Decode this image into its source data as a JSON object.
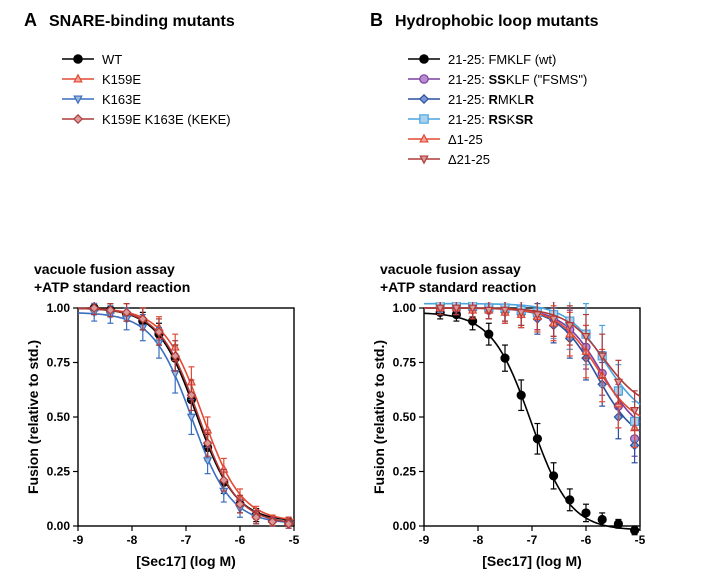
{
  "panelA": {
    "letter": "A",
    "title": "SNARE-binding mutants",
    "legend": [
      {
        "label": "WT",
        "color": "#000000",
        "marker": "circle",
        "fill": "#000000"
      },
      {
        "label": "K159E",
        "color": "#e24a33",
        "marker": "triangle-up",
        "fill": "#f4a6a0"
      },
      {
        "label": "K163E",
        "color": "#3a6fbf",
        "marker": "triangle-down",
        "fill": "#9fb8e0"
      },
      {
        "label": "K159E K163E (KEKE)",
        "color": "#b03a3a",
        "marker": "diamond",
        "fill": "#d99a9a"
      }
    ],
    "chartTitle1": "vacuole fusion assay",
    "chartTitle2": "+ATP standard reaction",
    "yLabel": "Fusion (relative to std.)",
    "xLabel": "[Sec17] (log M)",
    "xlim": [
      -9,
      -5
    ],
    "ylim": [
      0,
      1.0
    ],
    "xtickStep": 1,
    "ytickStep": 0.25,
    "gridColor": "#000000",
    "background": "#ffffff",
    "series": [
      {
        "name": "WT",
        "color": "#000000",
        "fill": "#000000",
        "marker": "circle",
        "x": [
          -8.7,
          -8.4,
          -8.1,
          -7.8,
          -7.5,
          -7.2,
          -6.9,
          -6.6,
          -6.3,
          -6.0,
          -5.7,
          -5.4,
          -5.1
        ],
        "y": [
          1.0,
          0.99,
          0.97,
          0.94,
          0.88,
          0.77,
          0.58,
          0.36,
          0.2,
          0.1,
          0.05,
          0.03,
          0.02
        ],
        "err": [
          0.03,
          0.03,
          0.03,
          0.04,
          0.05,
          0.06,
          0.07,
          0.06,
          0.05,
          0.04,
          0.03,
          0.02,
          0.02
        ]
      },
      {
        "name": "K159E",
        "color": "#e24a33",
        "fill": "#f4a6a0",
        "marker": "triangle-up",
        "x": [
          -8.7,
          -8.4,
          -8.1,
          -7.8,
          -7.5,
          -7.2,
          -6.9,
          -6.6,
          -6.3,
          -6.0,
          -5.7,
          -5.4,
          -5.1
        ],
        "y": [
          1.0,
          0.99,
          0.98,
          0.96,
          0.91,
          0.82,
          0.66,
          0.44,
          0.26,
          0.13,
          0.06,
          0.03,
          0.02
        ],
        "err": [
          0.03,
          0.03,
          0.04,
          0.04,
          0.05,
          0.06,
          0.07,
          0.06,
          0.05,
          0.04,
          0.03,
          0.02,
          0.02
        ]
      },
      {
        "name": "K163E",
        "color": "#3a6fbf",
        "fill": "#9fb8e0",
        "marker": "triangle-down",
        "x": [
          -8.7,
          -8.4,
          -8.1,
          -7.8,
          -7.5,
          -7.2,
          -6.9,
          -6.6,
          -6.3,
          -6.0,
          -5.7,
          -5.4,
          -5.1
        ],
        "y": [
          0.98,
          0.97,
          0.95,
          0.91,
          0.84,
          0.7,
          0.5,
          0.3,
          0.16,
          0.08,
          0.04,
          0.02,
          0.01
        ],
        "err": [
          0.04,
          0.04,
          0.05,
          0.06,
          0.07,
          0.09,
          0.08,
          0.06,
          0.05,
          0.04,
          0.03,
          0.02,
          0.02
        ]
      },
      {
        "name": "KEKE",
        "color": "#b03a3a",
        "fill": "#d99a9a",
        "marker": "diamond",
        "x": [
          -8.7,
          -8.4,
          -8.1,
          -7.8,
          -7.5,
          -7.2,
          -6.9,
          -6.6,
          -6.3,
          -6.0,
          -5.7,
          -5.4,
          -5.1
        ],
        "y": [
          1.0,
          0.99,
          0.98,
          0.95,
          0.89,
          0.78,
          0.6,
          0.38,
          0.21,
          0.1,
          0.04,
          0.02,
          0.01
        ],
        "err": [
          0.03,
          0.03,
          0.04,
          0.05,
          0.06,
          0.07,
          0.07,
          0.06,
          0.05,
          0.04,
          0.03,
          0.02,
          0.02
        ]
      }
    ]
  },
  "panelB": {
    "letter": "B",
    "title": "Hydrophobic loop mutants",
    "legend": [
      {
        "labelParts": [
          [
            "21-25: FMKLF (wt)",
            false
          ]
        ],
        "color": "#000000",
        "marker": "circle",
        "fill": "#000000"
      },
      {
        "labelParts": [
          [
            "21-25: ",
            false
          ],
          [
            "SS",
            true
          ],
          [
            "KLF (\"FSMS\")",
            false
          ]
        ],
        "color": "#7a3fa0",
        "marker": "circle",
        "fill": "#b88cd0"
      },
      {
        "labelParts": [
          [
            "21-25: ",
            false
          ],
          [
            "R",
            true
          ],
          [
            "MKL",
            false
          ],
          [
            "R",
            true
          ]
        ],
        "color": "#2c4f9e",
        "marker": "diamond",
        "fill": "#7a98d6"
      },
      {
        "labelParts": [
          [
            "21-25: ",
            false
          ],
          [
            "RS",
            true
          ],
          [
            "K",
            false
          ],
          [
            "SR",
            true
          ]
        ],
        "color": "#4aa3df",
        "marker": "square",
        "fill": "#a7d1ef"
      },
      {
        "labelParts": [
          [
            "Δ1-25",
            false
          ]
        ],
        "color": "#e24a33",
        "marker": "triangle-up",
        "fill": "#f4a6a0"
      },
      {
        "labelParts": [
          [
            "Δ21-25",
            false
          ]
        ],
        "color": "#b03a3a",
        "marker": "triangle-down",
        "fill": "#d99a9a"
      }
    ],
    "chartTitle1": "vacuole fusion assay",
    "chartTitle2": "+ATP standard reaction",
    "yLabel": "Fusion (relative to std.)",
    "xLabel": "[Sec17] (log M)",
    "xlim": [
      -9,
      -5
    ],
    "ylim": [
      0,
      1.0
    ],
    "xtickStep": 1,
    "ytickStep": 0.25,
    "gridColor": "#000000",
    "background": "#ffffff",
    "series": [
      {
        "name": "wt",
        "color": "#000000",
        "fill": "#000000",
        "marker": "circle",
        "x": [
          -8.7,
          -8.4,
          -8.1,
          -7.8,
          -7.5,
          -7.2,
          -6.9,
          -6.6,
          -6.3,
          -6.0,
          -5.7,
          -5.4,
          -5.1
        ],
        "y": [
          0.98,
          0.97,
          0.94,
          0.88,
          0.77,
          0.6,
          0.4,
          0.23,
          0.12,
          0.06,
          0.03,
          0.01,
          -0.02
        ],
        "err": [
          0.03,
          0.03,
          0.04,
          0.05,
          0.06,
          0.07,
          0.07,
          0.06,
          0.05,
          0.04,
          0.03,
          0.02,
          0.02
        ]
      },
      {
        "name": "SSKLF",
        "color": "#7a3fa0",
        "fill": "#b88cd0",
        "marker": "circle",
        "x": [
          -8.7,
          -8.4,
          -8.1,
          -7.8,
          -7.5,
          -7.2,
          -6.9,
          -6.6,
          -6.3,
          -6.0,
          -5.7,
          -5.4,
          -5.1
        ],
        "y": [
          1.0,
          1.0,
          1.0,
          0.99,
          0.99,
          0.98,
          0.97,
          0.95,
          0.9,
          0.82,
          0.7,
          0.55,
          0.4
        ],
        "err": [
          0.03,
          0.03,
          0.04,
          0.04,
          0.05,
          0.06,
          0.07,
          0.08,
          0.09,
          0.1,
          0.1,
          0.1,
          0.08
        ]
      },
      {
        "name": "RMKLR",
        "color": "#2c4f9e",
        "fill": "#7a98d6",
        "marker": "diamond",
        "x": [
          -8.7,
          -8.4,
          -8.1,
          -7.8,
          -7.5,
          -7.2,
          -6.9,
          -6.6,
          -6.3,
          -6.0,
          -5.7,
          -5.4,
          -5.1
        ],
        "y": [
          1.0,
          1.0,
          0.99,
          0.99,
          0.98,
          0.97,
          0.95,
          0.92,
          0.86,
          0.77,
          0.65,
          0.5,
          0.37
        ],
        "err": [
          0.03,
          0.03,
          0.04,
          0.04,
          0.05,
          0.06,
          0.07,
          0.08,
          0.09,
          0.1,
          0.1,
          0.1,
          0.08
        ]
      },
      {
        "name": "RSKSR",
        "color": "#4aa3df",
        "fill": "#a7d1ef",
        "marker": "square",
        "x": [
          -8.7,
          -8.4,
          -8.1,
          -7.8,
          -7.5,
          -7.2,
          -6.9,
          -6.6,
          -6.3,
          -6.0,
          -5.7,
          -5.4,
          -5.1
        ],
        "y": [
          1.02,
          1.01,
          1.01,
          1.0,
          1.0,
          0.99,
          0.98,
          0.97,
          0.94,
          0.88,
          0.78,
          0.62,
          0.48
        ],
        "err": [
          0.04,
          0.04,
          0.05,
          0.05,
          0.06,
          0.07,
          0.09,
          0.11,
          0.13,
          0.14,
          0.14,
          0.12,
          0.09
        ]
      },
      {
        "name": "Δ1-25",
        "color": "#e24a33",
        "fill": "#f4a6a0",
        "marker": "triangle-up",
        "x": [
          -8.7,
          -8.4,
          -8.1,
          -7.8,
          -7.5,
          -7.2,
          -6.9,
          -6.6,
          -6.3,
          -6.0,
          -5.7,
          -5.4,
          -5.1
        ],
        "y": [
          1.0,
          1.0,
          0.99,
          0.99,
          0.98,
          0.97,
          0.96,
          0.93,
          0.88,
          0.8,
          0.69,
          0.56,
          0.45
        ],
        "err": [
          0.03,
          0.03,
          0.04,
          0.04,
          0.05,
          0.06,
          0.07,
          0.08,
          0.1,
          0.12,
          0.12,
          0.11,
          0.09
        ]
      },
      {
        "name": "Δ21-25",
        "color": "#b03a3a",
        "fill": "#d99a9a",
        "marker": "triangle-down",
        "x": [
          -8.7,
          -8.4,
          -8.1,
          -7.8,
          -7.5,
          -7.2,
          -6.9,
          -6.6,
          -6.3,
          -6.0,
          -5.7,
          -5.4,
          -5.1
        ],
        "y": [
          1.0,
          1.0,
          1.0,
          0.99,
          0.99,
          0.98,
          0.97,
          0.95,
          0.92,
          0.87,
          0.78,
          0.66,
          0.53
        ],
        "err": [
          0.03,
          0.03,
          0.04,
          0.04,
          0.05,
          0.06,
          0.07,
          0.08,
          0.09,
          0.1,
          0.1,
          0.1,
          0.09
        ]
      }
    ]
  }
}
